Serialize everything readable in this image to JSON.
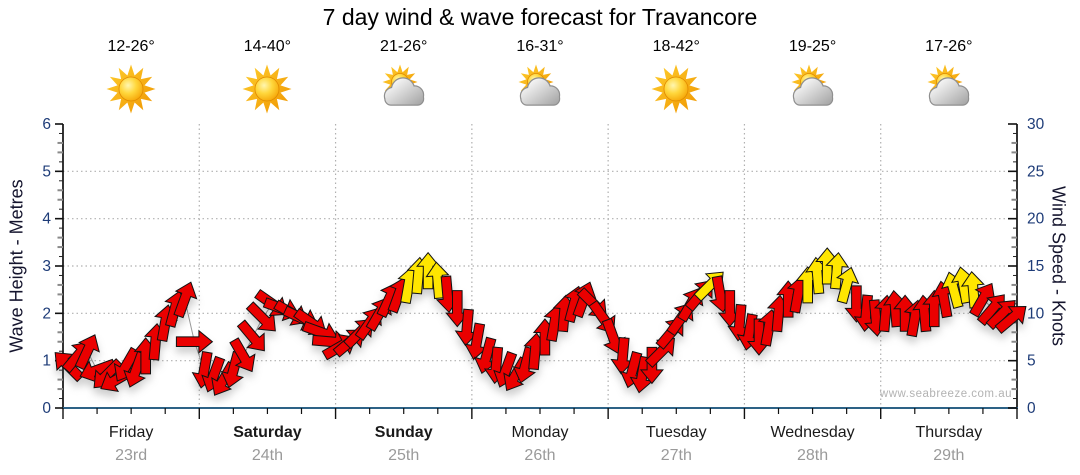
{
  "title": "7 day wind & wave forecast for Travancore",
  "watermark": "www.seabreeze.com.au",
  "colors": {
    "arrow_red": "#ea0000",
    "arrow_yellow": "#ffe600",
    "arrow_outline": "#111111",
    "grid": "#b0b0b0",
    "axis_tick_text": "#1e3c78",
    "axis_line": "#000000",
    "x_axis_line": "#2d6286",
    "day_label": "#1a1a1a",
    "date_label": "#9a9a9a"
  },
  "days": [
    {
      "name": "Friday",
      "date": "23rd",
      "temp": "12-26°",
      "icon": "sun-icon",
      "bold": false
    },
    {
      "name": "Saturday",
      "date": "24th",
      "temp": "14-40°",
      "icon": "sun-icon",
      "bold": true
    },
    {
      "name": "Sunday",
      "date": "25th",
      "temp": "21-26°",
      "icon": "sun-cloud-icon",
      "bold": true
    },
    {
      "name": "Monday",
      "date": "26th",
      "temp": "16-31°",
      "icon": "sun-cloud-icon",
      "bold": false
    },
    {
      "name": "Tuesday",
      "date": "27th",
      "temp": "18-42°",
      "icon": "sun-icon",
      "bold": false
    },
    {
      "name": "Wednesday",
      "date": "28th",
      "temp": "19-25°",
      "icon": "sun-cloud-icon",
      "bold": false
    },
    {
      "name": "Thursday",
      "date": "29th",
      "temp": "17-26°",
      "icon": "sun-cloud-icon",
      "bold": false
    }
  ],
  "axes": {
    "left": {
      "title": "Wave Height - Metres",
      "ticks": [
        "0",
        "1",
        "2",
        "3",
        "4",
        "5",
        "6"
      ]
    },
    "right": {
      "title": "Wind Speed - Knots",
      "ticks": [
        "0",
        "5",
        "10",
        "15",
        "20",
        "25",
        "30"
      ]
    }
  },
  "chart_data": {
    "type": "scatter",
    "subtype": "wind-direction-arrow-series",
    "title": "7 day wind & wave forecast for Travancore",
    "categories": [
      "Friday 23rd",
      "Saturday 24th",
      "Sunday 25th",
      "Monday 26th",
      "Tuesday 27th",
      "Wednesday 28th",
      "Thursday 29th"
    ],
    "y_left": {
      "label": "Wave Height - Metres",
      "min": 0,
      "max": 6,
      "major_step": 1
    },
    "y_right": {
      "label": "Wind Speed - Knots",
      "min": 0,
      "max": 30,
      "major_step": 5
    },
    "grid": "dotted, horizontal at whole metres, vertical at day boundaries",
    "legend": "arrow colour indicates wind strength: red = lighter, yellow = stronger",
    "yellow_threshold_knots": 12.5,
    "points_per_day": 14,
    "point_format": [
      "wind_speed_knots",
      "direction_deg_arrow_points_toward (0=N/up, 90=E/right)"
    ],
    "points": [
      [
        4.5,
        315
      ],
      [
        5.5,
        40
      ],
      [
        6,
        25
      ],
      [
        4,
        250
      ],
      [
        3.5,
        225
      ],
      [
        3,
        240
      ],
      [
        4.5,
        210
      ],
      [
        4,
        200
      ],
      [
        5.5,
        0
      ],
      [
        7,
        5
      ],
      [
        9,
        10
      ],
      [
        10.5,
        15
      ],
      [
        11.5,
        20
      ],
      [
        7,
        90
      ],
      [
        4,
        190
      ],
      [
        3.5,
        200
      ],
      [
        3,
        210
      ],
      [
        4,
        195
      ],
      [
        5.5,
        150
      ],
      [
        7.5,
        140
      ],
      [
        9.5,
        135
      ],
      [
        11,
        125
      ],
      [
        10.5,
        110
      ],
      [
        10,
        120
      ],
      [
        9.5,
        115
      ],
      [
        9,
        125
      ],
      [
        8,
        110
      ],
      [
        7,
        95
      ],
      [
        6.5,
        60
      ],
      [
        7,
        50
      ],
      [
        8,
        45
      ],
      [
        9,
        35
      ],
      [
        10,
        30
      ],
      [
        11.5,
        25
      ],
      [
        12,
        20
      ],
      [
        13,
        10
      ],
      [
        14,
        5
      ],
      [
        14.5,
        0
      ],
      [
        13.5,
        355
      ],
      [
        12,
        175
      ],
      [
        10.5,
        180
      ],
      [
        8.5,
        185
      ],
      [
        7,
        190
      ],
      [
        5.5,
        195
      ],
      [
        4.5,
        185
      ],
      [
        4,
        200
      ],
      [
        3.5,
        210
      ],
      [
        4.5,
        195
      ],
      [
        6,
        5
      ],
      [
        7.5,
        0
      ],
      [
        9,
        10
      ],
      [
        10,
        5
      ],
      [
        11,
        15
      ],
      [
        11.5,
        20
      ],
      [
        11,
        135
      ],
      [
        9.5,
        145
      ],
      [
        7.5,
        160
      ],
      [
        5.5,
        185
      ],
      [
        4,
        195
      ],
      [
        3.5,
        190
      ],
      [
        4.5,
        180
      ],
      [
        6,
        45
      ],
      [
        8,
        40
      ],
      [
        9.5,
        35
      ],
      [
        11,
        30
      ],
      [
        12,
        40
      ],
      [
        13,
        45
      ],
      [
        12,
        170
      ],
      [
        10.5,
        180
      ],
      [
        9,
        185
      ],
      [
        8,
        190
      ],
      [
        7.5,
        180
      ],
      [
        8.5,
        10
      ],
      [
        10,
        5
      ],
      [
        11.5,
        0
      ],
      [
        12,
        10
      ],
      [
        13,
        0
      ],
      [
        14,
        355
      ],
      [
        15,
        0
      ],
      [
        14.5,
        5
      ],
      [
        13,
        15
      ],
      [
        11,
        180
      ],
      [
        10,
        185
      ],
      [
        9.5,
        175
      ],
      [
        10,
        5
      ],
      [
        10.5,
        355
      ],
      [
        10,
        0
      ],
      [
        9.5,
        10
      ],
      [
        10,
        355
      ],
      [
        10.5,
        0
      ],
      [
        11.5,
        350
      ],
      [
        12.5,
        345
      ],
      [
        13,
        350
      ],
      [
        12.5,
        355
      ],
      [
        11.5,
        30
      ],
      [
        10.5,
        40
      ],
      [
        10,
        45
      ],
      [
        9.5,
        50
      ]
    ]
  }
}
